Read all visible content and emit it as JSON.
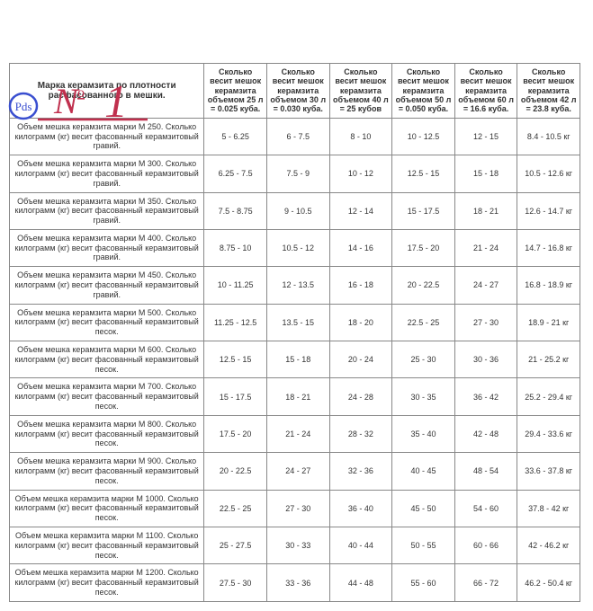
{
  "annotation": {
    "pds_text": "Pds",
    "no_text": "N",
    "no_suffix": "o",
    "number": "1",
    "stroke_color": "#3a4fd0",
    "fill_color": "none"
  },
  "table": {
    "header_main": "Марка керамзита по плотности расфасованного в мешки.",
    "columns": [
      "Сколько весит мешок керамзита объемом 25 л = 0.025 куба.",
      "Сколько весит мешок керамзита объемом 30 л = 0.030 куба.",
      "Сколько весит мешок керамзита объемом 40 л = 25 кубов",
      "Сколько весит мешок керамзита объемом 50 л = 0.050 куба.",
      "Сколько весит мешок керамзита объемом 60 л = 16.6 куба.",
      "Сколько весит мешок керамзита объемом 42 л = 23.8 куба."
    ],
    "rows": [
      {
        "label": "Объем мешка керамзита марки М 250. Сколько килограмм (кг) весит фасованный керамзитовый гравий.",
        "cells": [
          "5 - 6.25",
          "6 - 7.5",
          "8 - 10",
          "10 - 12.5",
          "12 - 15",
          "8.4 - 10.5 кг"
        ]
      },
      {
        "label": "Объем мешка керамзита марки М 300. Сколько килограмм (кг) весит фасованный керамзитовый гравий.",
        "cells": [
          "6.25 - 7.5",
          "7.5 - 9",
          "10 - 12",
          "12.5 - 15",
          "15 - 18",
          "10.5 - 12.6 кг"
        ]
      },
      {
        "label": "Объем мешка керамзита марки М 350. Сколько килограмм (кг) весит фасованный керамзитовый гравий.",
        "cells": [
          "7.5 - 8.75",
          "9 - 10.5",
          "12 - 14",
          "15 - 17.5",
          "18 - 21",
          "12.6 - 14.7 кг"
        ]
      },
      {
        "label": "Объем мешка керамзита марки М 400. Сколько килограмм (кг) весит фасованный керамзитовый гравий.",
        "cells": [
          "8.75 - 10",
          "10.5 - 12",
          "14 - 16",
          "17.5 - 20",
          "21 - 24",
          "14.7 - 16.8 кг"
        ]
      },
      {
        "label": "Объем мешка керамзита марки М 450. Сколько килограмм (кг) весит фасованный керамзитовый гравий.",
        "cells": [
          "10 - 11.25",
          "12 - 13.5",
          "16 - 18",
          "20 - 22.5",
          "24 - 27",
          "16.8 - 18.9 кг"
        ]
      },
      {
        "label": "Объем мешка керамзита марки М 500. Сколько килограмм (кг) весит фасованный керамзитовый песок.",
        "cells": [
          "11.25 - 12.5",
          "13.5 - 15",
          "18 - 20",
          "22.5 - 25",
          "27 - 30",
          "18.9 - 21 кг"
        ]
      },
      {
        "label": "Объем мешка керамзита марки М 600. Сколько килограмм (кг) весит фасованный керамзитовый песок.",
        "cells": [
          "12.5 - 15",
          "15 - 18",
          "20 - 24",
          "25 - 30",
          "30 - 36",
          "21 - 25.2 кг"
        ]
      },
      {
        "label": "Объем мешка керамзита марки М 700. Сколько килограмм (кг) весит фасованный керамзитовый песок.",
        "cells": [
          "15 - 17.5",
          "18 - 21",
          "24 - 28",
          "30 - 35",
          "36 - 42",
          "25.2 - 29.4 кг"
        ]
      },
      {
        "label": "Объем мешка керамзита марки М 800. Сколько килограмм (кг) весит фасованный керамзитовый песок.",
        "cells": [
          "17.5 - 20",
          "21 - 24",
          "28 - 32",
          "35 - 40",
          "42 - 48",
          "29.4 - 33.6 кг"
        ]
      },
      {
        "label": "Объем мешка керамзита марки М 900. Сколько килограмм (кг) весит фасованный керамзитовый песок.",
        "cells": [
          "20 - 22.5",
          "24 - 27",
          "32 - 36",
          "40 - 45",
          "48 - 54",
          "33.6 - 37.8 кг"
        ]
      },
      {
        "label": "Объем мешка керамзита марки М 1000. Сколько килограмм (кг) весит фасованный керамзитовый песок.",
        "cells": [
          "22.5 - 25",
          "27 - 30",
          "36 - 40",
          "45 - 50",
          "54 - 60",
          "37.8 - 42 кг"
        ]
      },
      {
        "label": "Объем мешка керамзита марки М 1100. Сколько килограмм (кг) весит фасованный керамзитовый песок.",
        "cells": [
          "25 - 27.5",
          "30 - 33",
          "40 - 44",
          "50 - 55",
          "60 - 66",
          "42 - 46.2 кг"
        ]
      },
      {
        "label": "Объем мешка керамзита марки М 1200. Сколько килограмм (кг) весит фасованный керамзитовый песок.",
        "cells": [
          "27.5 - 30",
          "33 - 36",
          "44 - 48",
          "55 - 60",
          "66 - 72",
          "46.2 - 50.4 кг"
        ]
      }
    ]
  }
}
